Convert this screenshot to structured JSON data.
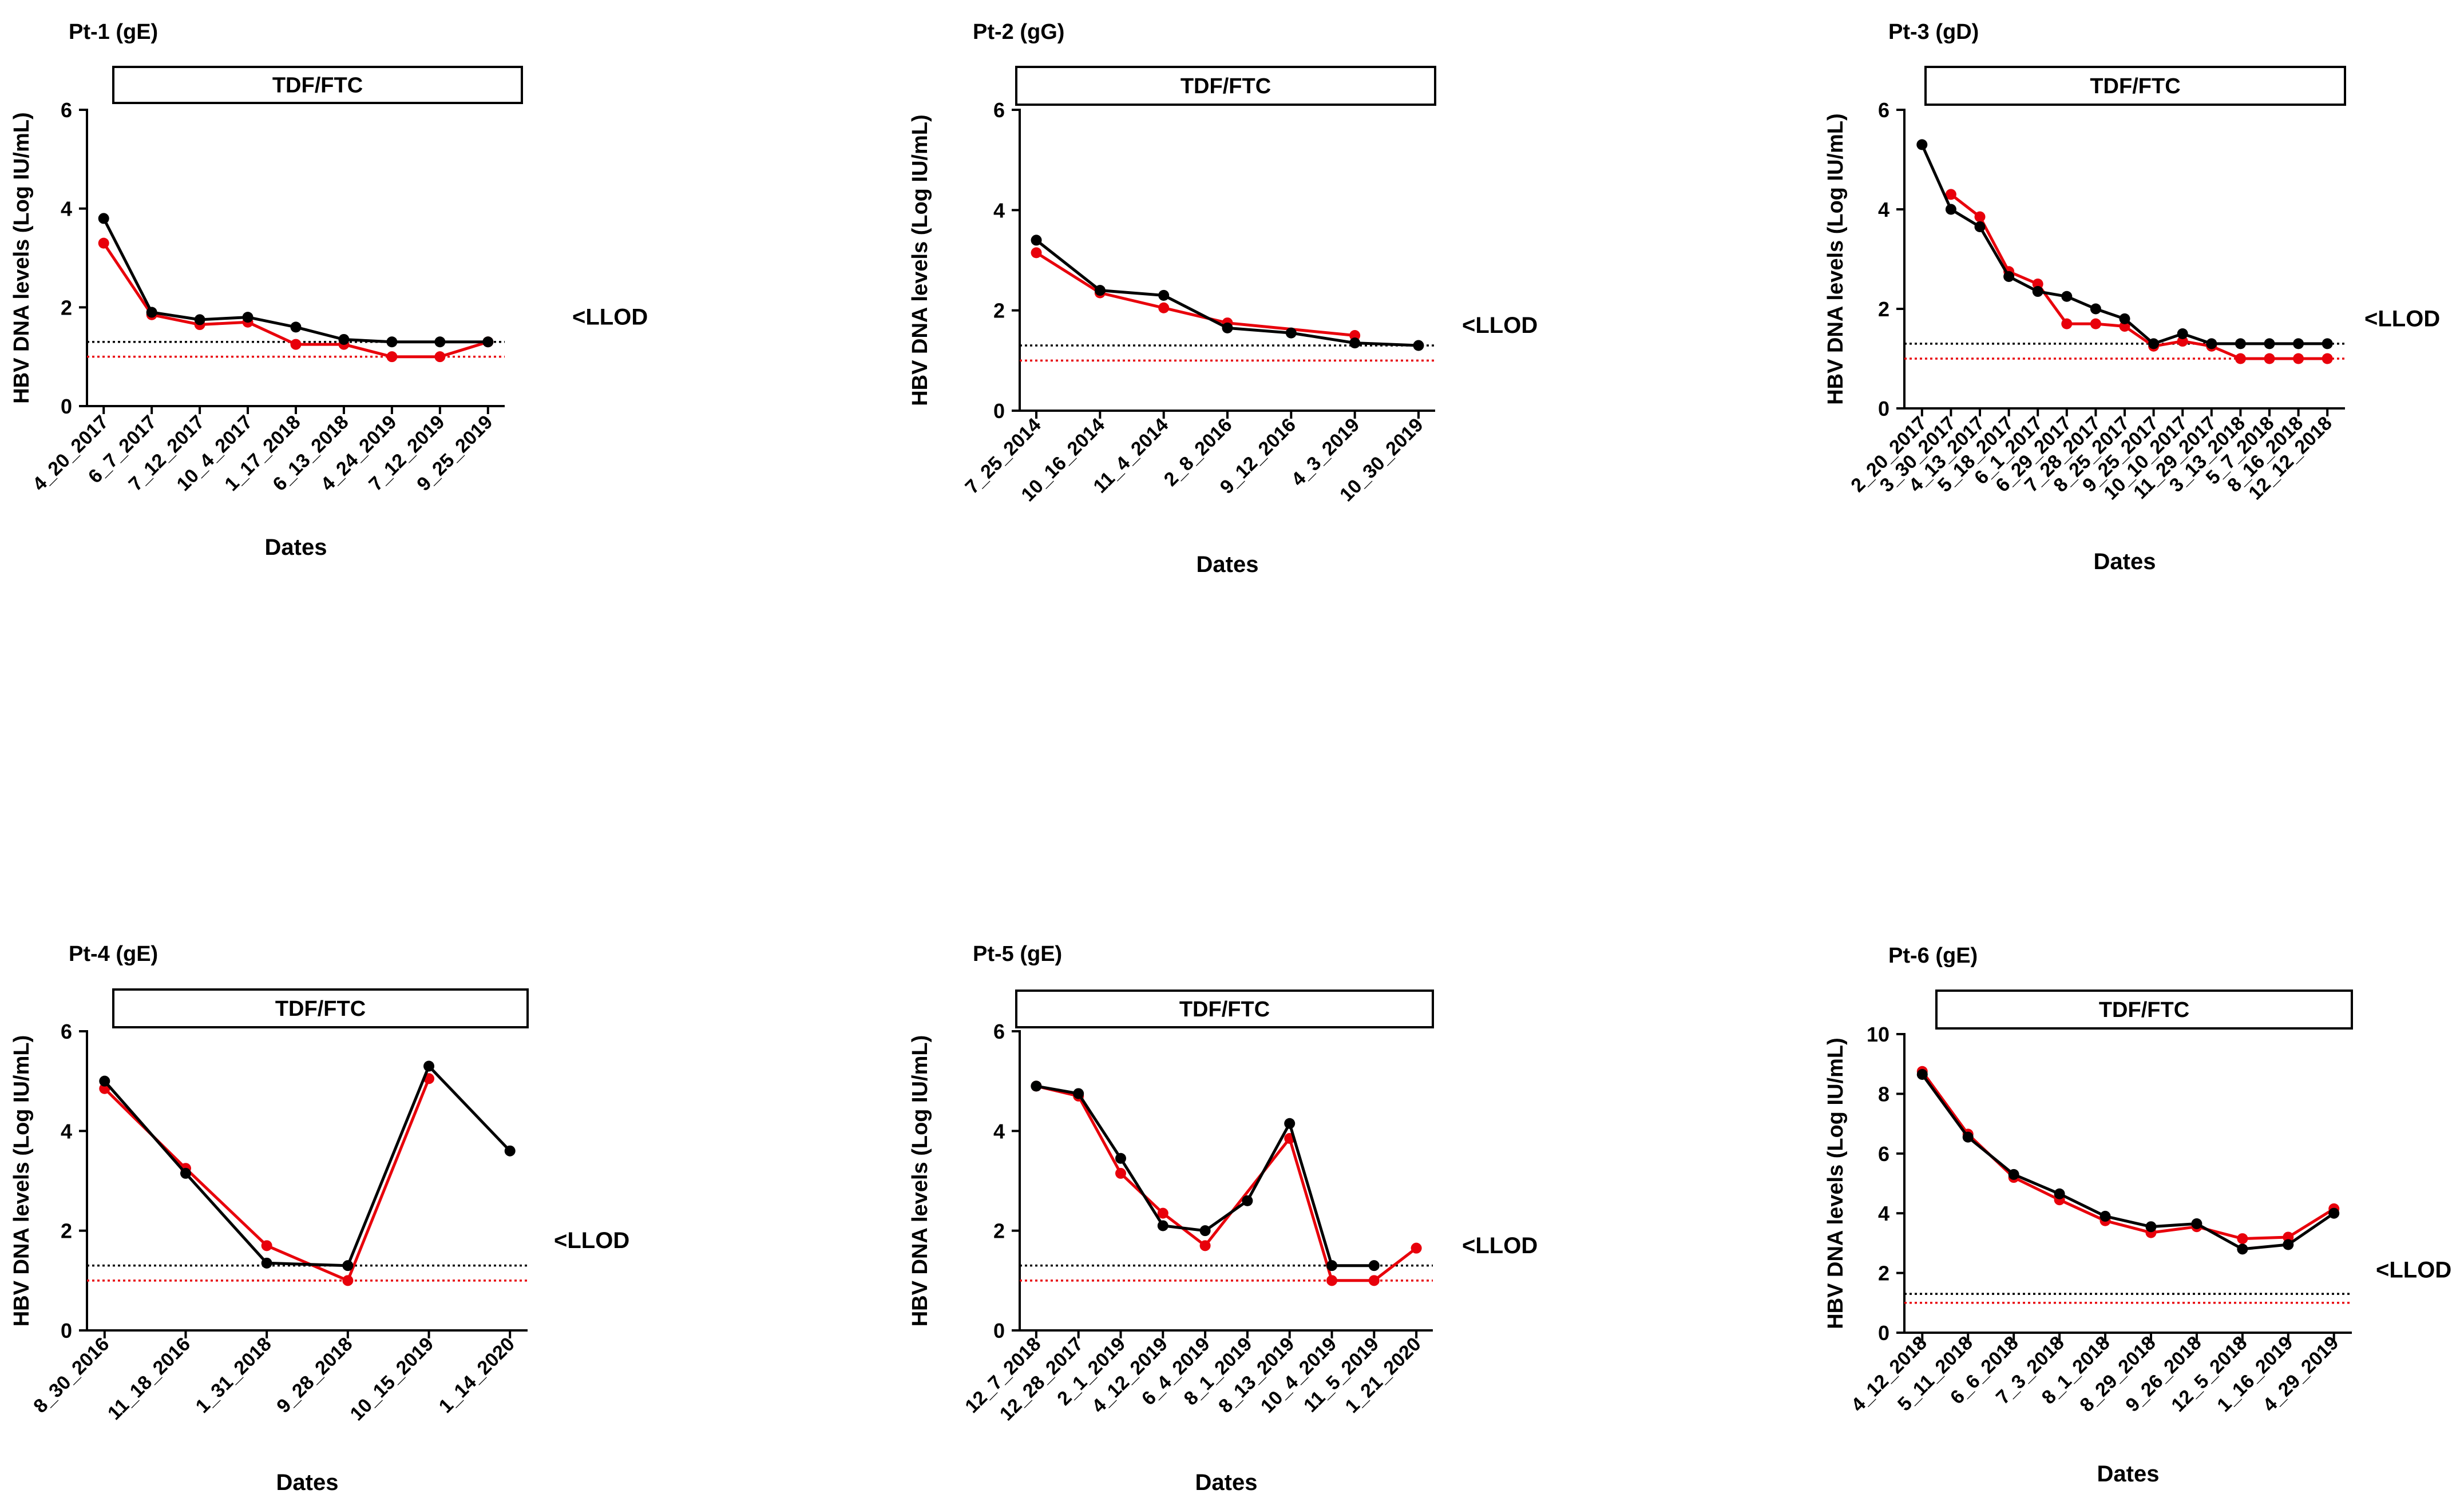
{
  "chart_data": [
    {
      "type": "line",
      "title": "Pt-1 (gE)",
      "treatment": "TDF/FTC",
      "xlabel": "Dates",
      "ylabel": "HBV DNA levels (Log IU/mL)",
      "ylim": [
        0,
        6
      ],
      "yticks": [
        "0",
        "2",
        "4",
        "6"
      ],
      "categories": [
        "4_20_2017",
        "6_7_2017",
        "7_12_2017",
        "10_4_2017",
        "1_17_2018",
        "6_13_2018",
        "4_24_2019",
        "7_12_2019",
        "9_25_2019"
      ],
      "series": [
        {
          "name": "black",
          "color": "#000000",
          "values": [
            3.8,
            1.9,
            1.75,
            1.8,
            1.6,
            1.35,
            1.3,
            1.3,
            1.3
          ]
        },
        {
          "name": "red",
          "color": "#e8000b",
          "values": [
            3.3,
            1.85,
            1.65,
            1.7,
            1.25,
            1.25,
            1.0,
            1.0,
            1.3
          ]
        }
      ],
      "ref_lines": [
        {
          "value": 1.3,
          "color": "#000000"
        },
        {
          "value": 1.0,
          "color": "#e8000b"
        }
      ],
      "llod_label": "<LLOD",
      "llod_value": 1.8
    },
    {
      "type": "line",
      "title": "Pt-2 (gG)",
      "treatment": "TDF/FTC",
      "xlabel": "Dates",
      "ylabel": "HBV DNA levels (Log IU/mL)",
      "ylim": [
        0,
        6
      ],
      "yticks": [
        "0",
        "2",
        "4",
        "6"
      ],
      "categories": [
        "7_25_2014",
        "10_16_2014",
        "11_4_2014",
        "2_8_2016",
        "9_12_2016",
        "4_3_2019",
        "10_30_2019"
      ],
      "series": [
        {
          "name": "black",
          "color": "#000000",
          "values": [
            3.4,
            2.4,
            2.3,
            1.65,
            1.55,
            1.35,
            1.3
          ]
        },
        {
          "name": "red",
          "color": "#e8000b",
          "values": [
            3.15,
            2.35,
            2.05,
            1.75,
            null,
            1.5,
            null
          ]
        }
      ],
      "ref_lines": [
        {
          "value": 1.3,
          "color": "#000000"
        },
        {
          "value": 1.0,
          "color": "#e8000b"
        }
      ],
      "llod_label": "<LLOD",
      "llod_value": 1.7
    },
    {
      "type": "line",
      "title": "Pt-3 (gD)",
      "treatment": "TDF/FTC",
      "xlabel": "Dates",
      "ylabel": "HBV DNA levels (Log IU/mL)",
      "ylim": [
        0,
        6
      ],
      "yticks": [
        "0",
        "2",
        "4",
        "6"
      ],
      "categories": [
        "2_20_2017",
        "3_30_2017",
        "4_13_2017",
        "5_18_2017",
        "6_1_2017",
        "6_29_2017",
        "7_28_2017",
        "8_25_2017",
        "9_25_2017",
        "10_10_2017",
        "11_29_2017",
        "3_13_2018",
        "5_7_2018",
        "8_16_2018",
        "12_12_2018"
      ],
      "series": [
        {
          "name": "black",
          "color": "#000000",
          "values": [
            5.3,
            4.0,
            3.65,
            2.65,
            2.35,
            2.25,
            2.0,
            1.8,
            1.3,
            1.5,
            1.3,
            1.3,
            1.3,
            1.3,
            1.3
          ]
        },
        {
          "name": "red",
          "color": "#e8000b",
          "values": [
            null,
            4.3,
            3.85,
            2.75,
            2.5,
            1.7,
            1.7,
            1.65,
            1.25,
            1.35,
            1.25,
            1.0,
            1.0,
            1.0,
            1.0
          ]
        }
      ],
      "ref_lines": [
        {
          "value": 1.3,
          "color": "#000000"
        },
        {
          "value": 1.0,
          "color": "#e8000b"
        }
      ],
      "llod_label": "<LLOD",
      "llod_value": 1.8
    },
    {
      "type": "line",
      "title": "Pt-4 (gE)",
      "treatment": "TDF/FTC",
      "xlabel": "Dates",
      "ylabel": "HBV DNA levels (Log IU/mL)",
      "ylim": [
        0,
        6
      ],
      "yticks": [
        "0",
        "2",
        "4",
        "6"
      ],
      "categories": [
        "8_30_2016",
        "11_18_2016",
        "1_31_2018",
        "9_28_2018",
        "10_15_2019",
        "1_14_2020"
      ],
      "series": [
        {
          "name": "black",
          "color": "#000000",
          "values": [
            5.0,
            3.15,
            1.35,
            1.3,
            5.3,
            3.6
          ]
        },
        {
          "name": "red",
          "color": "#e8000b",
          "values": [
            4.85,
            3.25,
            1.7,
            1.0,
            5.05,
            null
          ]
        }
      ],
      "ref_lines": [
        {
          "value": 1.3,
          "color": "#000000"
        },
        {
          "value": 1.0,
          "color": "#e8000b"
        }
      ],
      "llod_label": "<LLOD",
      "llod_value": 1.8
    },
    {
      "type": "line",
      "title": "Pt-5 (gE)",
      "treatment": "TDF/FTC",
      "xlabel": "Dates",
      "ylabel": "HBV DNA levels (Log IU/mL)",
      "ylim": [
        0,
        6
      ],
      "yticks": [
        "0",
        "2",
        "4",
        "6"
      ],
      "categories": [
        "12_7_2018",
        "12_28_2017",
        "2_1_2019",
        "4_12_2019",
        "6_4_2019",
        "8_1_2019",
        "8_13_2019",
        "10_4_2019",
        "11_5_2019",
        "1_21_2020"
      ],
      "series": [
        {
          "name": "black",
          "color": "#000000",
          "values": [
            4.9,
            4.75,
            3.45,
            2.1,
            2.0,
            2.6,
            4.15,
            1.3,
            1.3,
            null
          ]
        },
        {
          "name": "red",
          "color": "#e8000b",
          "values": [
            4.9,
            4.7,
            3.15,
            2.35,
            1.7,
            null,
            3.85,
            1.0,
            1.0,
            1.65
          ]
        }
      ],
      "ref_lines": [
        {
          "value": 1.3,
          "color": "#000000"
        },
        {
          "value": 1.0,
          "color": "#e8000b"
        }
      ],
      "llod_label": "<LLOD",
      "llod_value": 1.7
    },
    {
      "type": "line",
      "title": "Pt-6 (gE)",
      "treatment": "TDF/FTC",
      "xlabel": "Dates",
      "ylabel": "HBV DNA levels (Log IU/mL)",
      "ylim": [
        0,
        10
      ],
      "yticks": [
        "0",
        "2",
        "4",
        "6",
        "8",
        "10"
      ],
      "categories": [
        "4_12_2018",
        "5_11_2018",
        "6_6_2018",
        "7_3_2018",
        "8_1_2018",
        "8_29_2018",
        "9_26_2018",
        "12_5_2018",
        "1_16_2019",
        "4_29_2019"
      ],
      "series": [
        {
          "name": "black",
          "color": "#000000",
          "values": [
            8.65,
            6.55,
            5.3,
            4.65,
            3.9,
            3.55,
            3.65,
            2.8,
            2.95,
            4.0
          ]
        },
        {
          "name": "red",
          "color": "#e8000b",
          "values": [
            8.75,
            6.65,
            5.2,
            4.45,
            3.75,
            3.35,
            3.55,
            3.15,
            3.2,
            4.15
          ]
        }
      ],
      "ref_lines": [
        {
          "value": 1.3,
          "color": "#000000"
        },
        {
          "value": 1.0,
          "color": "#e8000b"
        }
      ],
      "llod_label": "<LLOD",
      "llod_value": 2.1
    }
  ]
}
